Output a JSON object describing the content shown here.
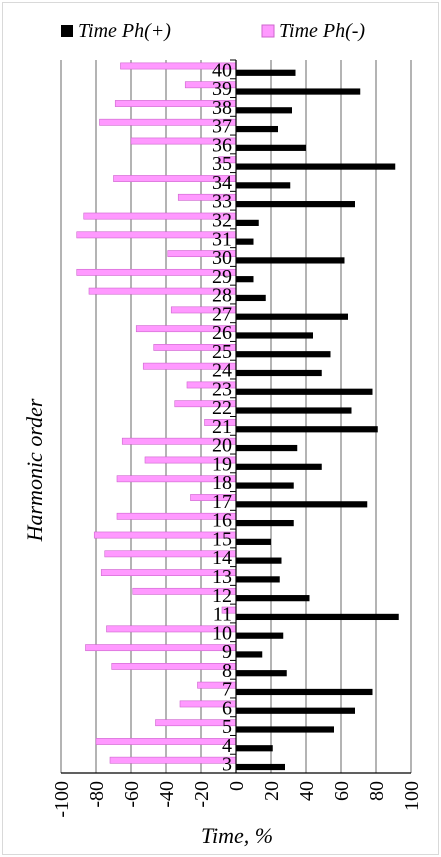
{
  "chart_data": {
    "type": "bar",
    "orientation": "horizontal",
    "title": "",
    "xlabel": "Time, %",
    "ylabel": "Harmonic order",
    "xlim": [
      -100,
      100
    ],
    "x_ticks": [
      "-100",
      "-80",
      "-60",
      "-40",
      "-20",
      "0",
      "20",
      "40",
      "60",
      "80",
      "100"
    ],
    "grid": "vertical",
    "legend_position": "top",
    "categories": [
      "3",
      "4",
      "5",
      "6",
      "7",
      "8",
      "9",
      "10",
      "11",
      "12",
      "13",
      "14",
      "15",
      "16",
      "17",
      "18",
      "19",
      "20",
      "21",
      "22",
      "23",
      "24",
      "25",
      "26",
      "27",
      "28",
      "29",
      "30",
      "31",
      "32",
      "33",
      "34",
      "35",
      "36",
      "37",
      "38",
      "39",
      "40"
    ],
    "series": [
      {
        "name": "Time Ph(+)",
        "color": "#000000",
        "values": [
          28,
          21,
          56,
          68,
          78,
          29,
          15,
          27,
          93,
          42,
          25,
          26,
          20,
          33,
          75,
          33,
          49,
          35,
          81,
          66,
          78,
          49,
          54,
          44,
          64,
          17,
          10,
          62,
          10,
          13,
          68,
          31,
          91,
          40,
          24,
          32,
          71,
          34
        ]
      },
      {
        "name": "Time Ph(-)",
        "color": "#ff99ff",
        "values": [
          -72,
          -80,
          -46,
          -32,
          -22,
          -71,
          -86,
          -74,
          -8,
          -59,
          -77,
          -75,
          -81,
          -68,
          -26,
          -68,
          -52,
          -65,
          -18,
          -35,
          -28,
          -53,
          -47,
          -57,
          -37,
          -84,
          -91,
          -39,
          -91,
          -87,
          -33,
          -70,
          -10,
          -60,
          -78,
          -69,
          -29,
          -66
        ]
      }
    ]
  }
}
